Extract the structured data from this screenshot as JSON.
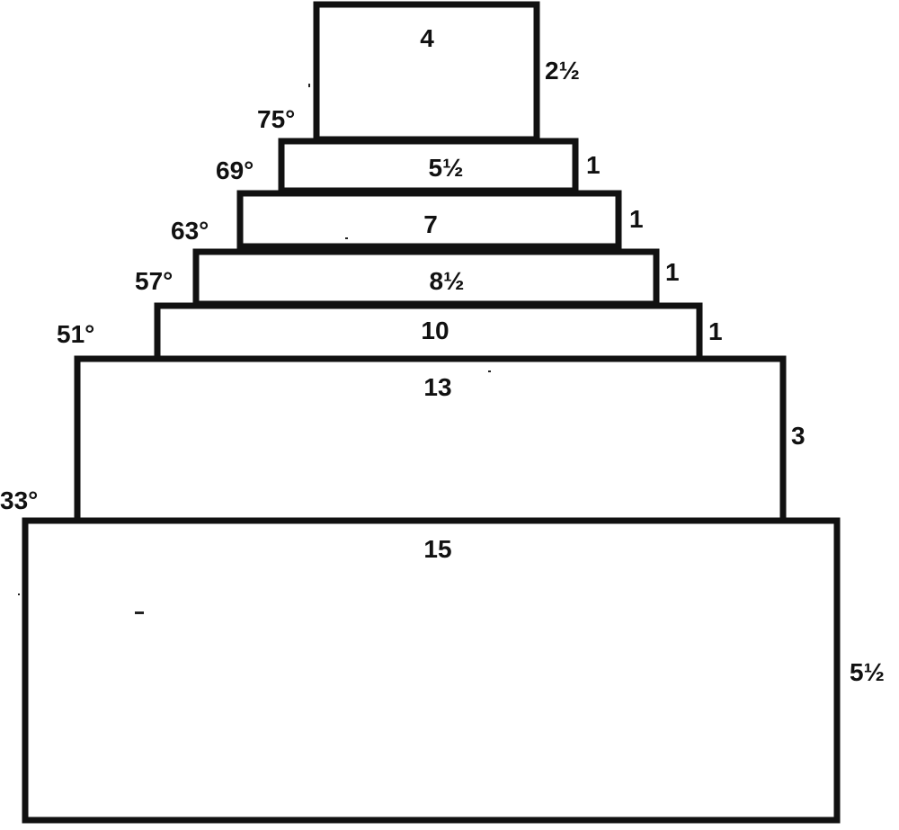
{
  "tiers": [
    {
      "width_label": "4",
      "height_label": "2½",
      "angle_label": "75°"
    },
    {
      "width_label": "5½",
      "height_label": "1",
      "angle_label": "69°"
    },
    {
      "width_label": "7",
      "height_label": "1",
      "angle_label": "63°"
    },
    {
      "width_label": "8½",
      "height_label": "1",
      "angle_label": "57°"
    },
    {
      "width_label": "10",
      "height_label": "1",
      "angle_label": "51°"
    },
    {
      "width_label": "13",
      "height_label": "3",
      "angle_label": "33°"
    },
    {
      "width_label": "15",
      "height_label": "5½",
      "angle_label": ""
    }
  ],
  "colors": {
    "stroke": "#111111",
    "fill": "#ffffff",
    "text": "#111111"
  }
}
